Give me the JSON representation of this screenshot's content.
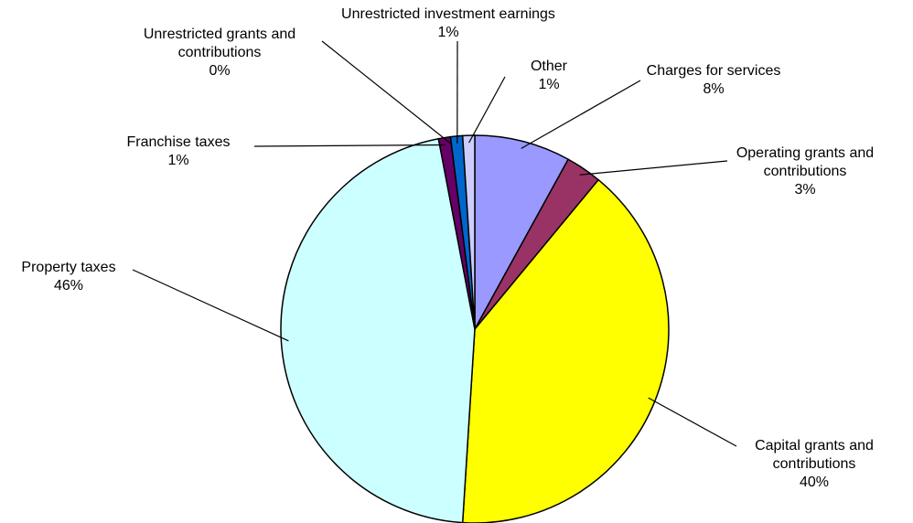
{
  "chart_data": {
    "type": "pie",
    "categories": [
      "Charges for services",
      "Operating grants and contributions",
      "Capital grants and contributions",
      "Property taxes",
      "Franchise taxes",
      "Unrestricted grants and contributions",
      "Unrestricted investment earnings",
      "Other"
    ],
    "values": [
      8,
      3,
      40,
      46,
      1,
      0,
      1,
      1
    ],
    "value_labels": [
      "8%",
      "3%",
      "40%",
      "46%",
      "1%",
      "0%",
      "1%",
      "1%"
    ],
    "colors": [
      "#9999ff",
      "#993366",
      "#ffff00",
      "#ccffff",
      "#660066",
      "#ff8080",
      "#0066cc",
      "#ccccff"
    ]
  }
}
